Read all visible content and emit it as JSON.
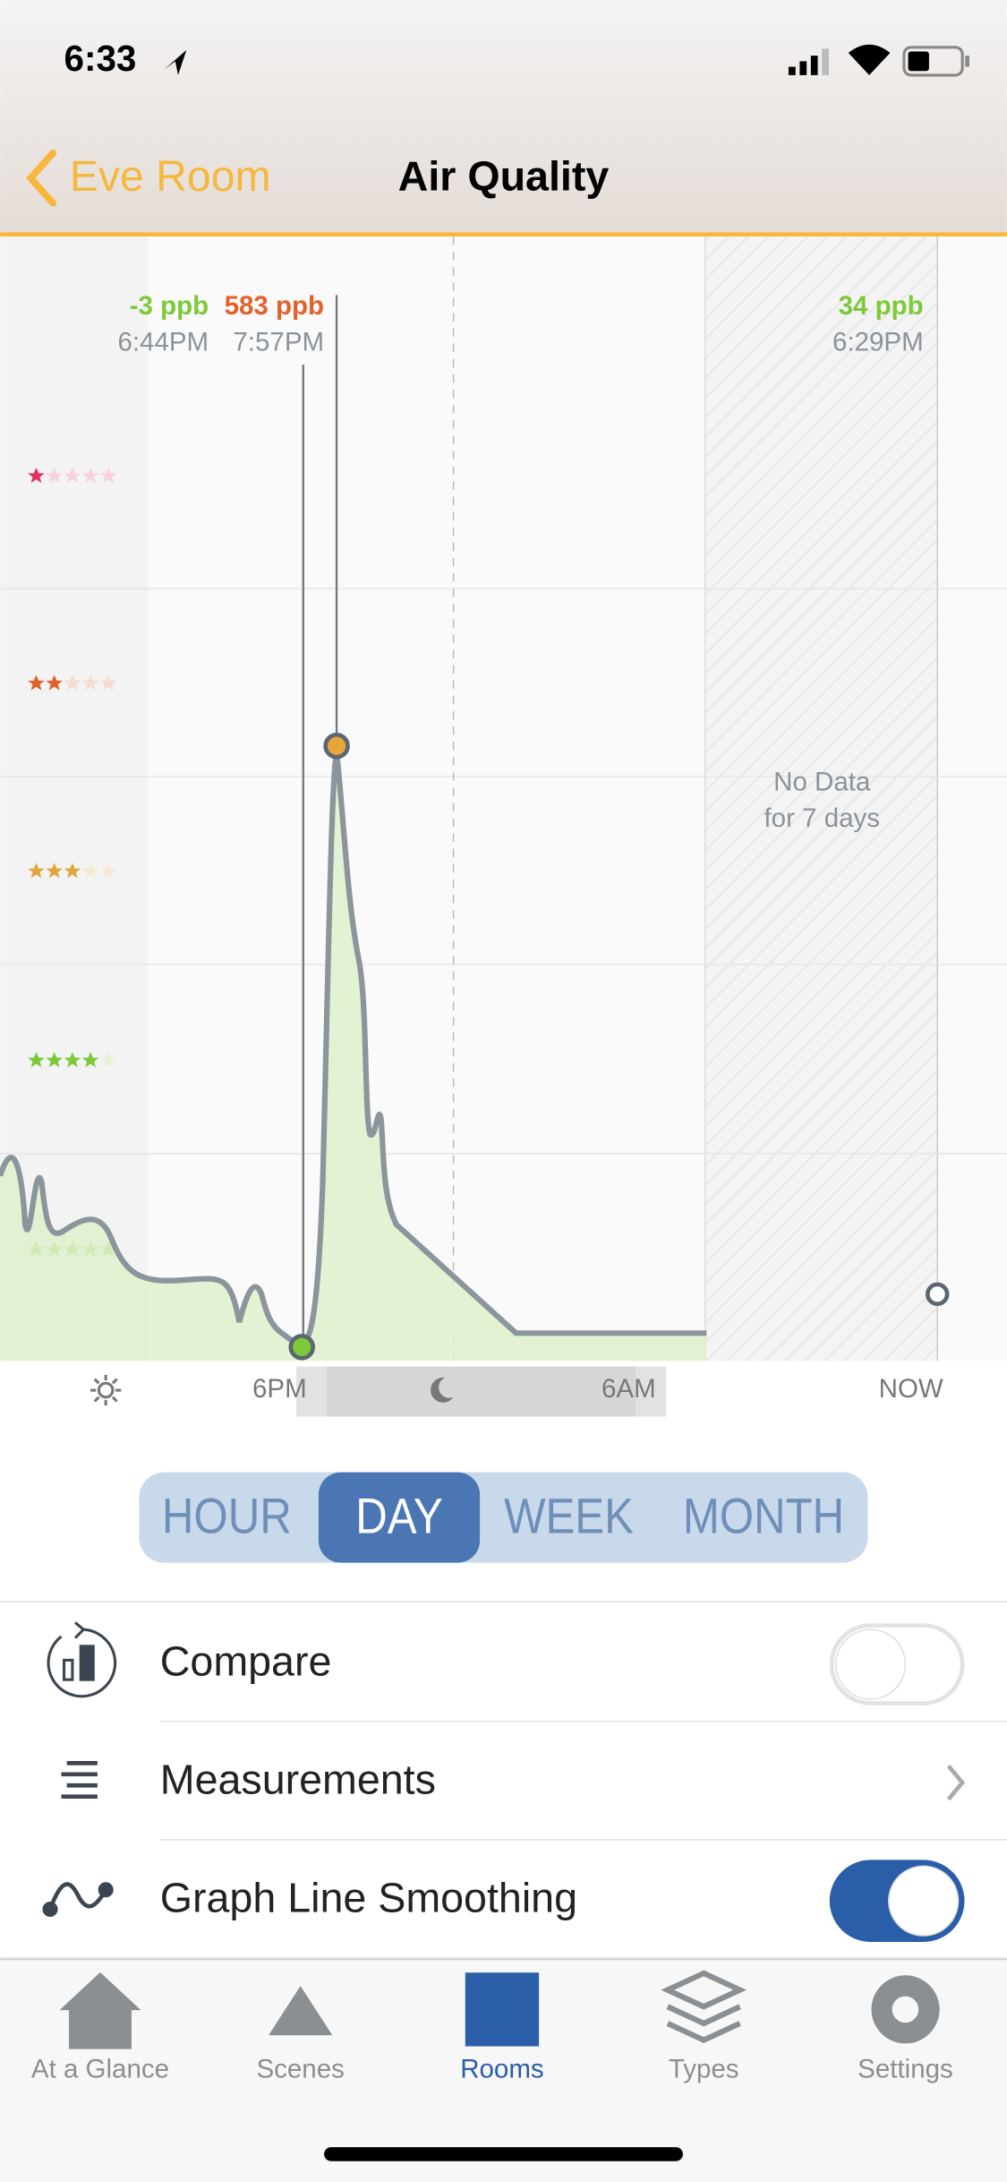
{
  "status_bar": {
    "time": "6:33"
  },
  "nav": {
    "back": "Eve Room",
    "title": "Air Quality"
  },
  "chart": {
    "readings": [
      {
        "value": "-3 ppb",
        "time": "6:44PM"
      },
      {
        "value": "583 ppb",
        "time": "7:57PM"
      },
      {
        "value": "34 ppb",
        "time": "6:29PM"
      }
    ],
    "no_data": [
      "No Data",
      "for 7 days"
    ],
    "x_labels": [
      "6PM",
      "6AM",
      "NOW"
    ]
  },
  "ranges": [
    "HOUR",
    "DAY",
    "WEEK",
    "MONTH"
  ],
  "selected_range": 1,
  "settings": [
    {
      "label": "Compare",
      "toggle": false
    },
    {
      "label": "Measurements"
    },
    {
      "label": "Graph Line Smoothing",
      "toggle": true
    }
  ],
  "tabs": [
    "At a Glance",
    "Scenes",
    "Rooms",
    "Types",
    "Settings"
  ],
  "active_tab": 2
}
